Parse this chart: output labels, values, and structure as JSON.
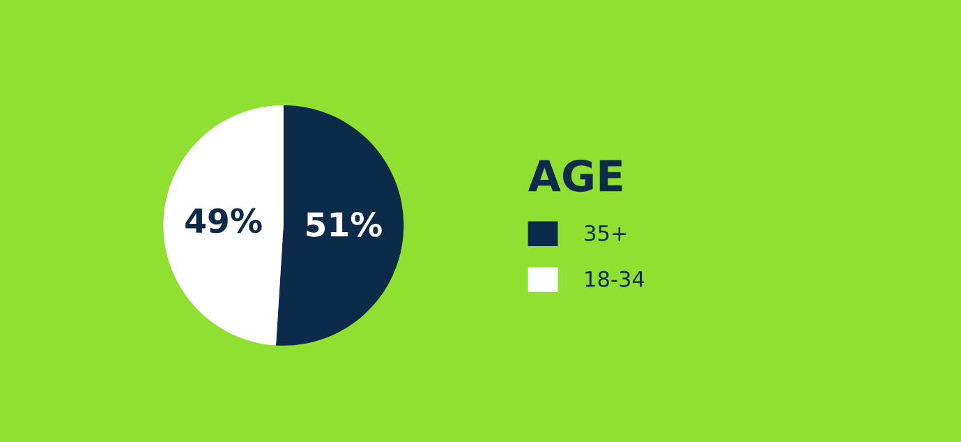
{
  "chart_data": {
    "type": "pie",
    "legend_title": "AGE",
    "categories": [
      "35+",
      "18-34"
    ],
    "values": [
      51,
      49
    ],
    "colors": [
      "#0c2a4a",
      "#ffffff"
    ],
    "value_labels": [
      "51%",
      "49%"
    ],
    "legend": "right"
  }
}
